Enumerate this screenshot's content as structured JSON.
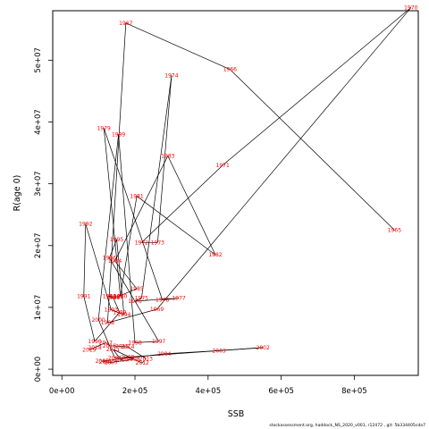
{
  "chart_data": {
    "type": "line",
    "title": "",
    "xlabel": "SSB",
    "ylabel": "R(age 0)",
    "xlim": [
      -25000,
      975000
    ],
    "ylim": [
      -1000000,
      58000000
    ],
    "xticks": [
      0,
      200000,
      400000,
      600000,
      800000
    ],
    "xtick_labels": [
      "0e+00",
      "2e+05",
      "4e+05",
      "6e+05",
      "8e+05"
    ],
    "yticks": [
      0,
      10000000,
      20000000,
      30000000,
      40000000,
      50000000
    ],
    "ytick_labels": [
      "0e+00",
      "1e+07",
      "2e+07",
      "3e+07",
      "4e+07",
      "5e+07"
    ],
    "grid": false,
    "line_color": "#000000",
    "label_color": "#ff0000",
    "footer": "stockassessment.org, haddock_NS_2020_v001, r12472 , git: 5b334405cda7",
    "points": [
      {
        "year": "1965",
        "x": 910000,
        "y": 22500000
      },
      {
        "year": "1966",
        "x": 460000,
        "y": 48500000
      },
      {
        "year": "1967",
        "x": 175000,
        "y": 56000000
      },
      {
        "year": "1968",
        "x": 125000,
        "y": 7500000
      },
      {
        "year": "1969",
        "x": 260000,
        "y": 9700000
      },
      {
        "year": "1970",
        "x": 955000,
        "y": 58500000
      },
      {
        "year": "1971",
        "x": 440000,
        "y": 33000000
      },
      {
        "year": "1972",
        "x": 218000,
        "y": 20500000
      },
      {
        "year": "1973",
        "x": 262000,
        "y": 20500000
      },
      {
        "year": "1974",
        "x": 300000,
        "y": 47500000
      },
      {
        "year": "1975",
        "x": 218000,
        "y": 11500000
      },
      {
        "year": "1976",
        "x": 200000,
        "y": 11000000
      },
      {
        "year": "1977",
        "x": 320000,
        "y": 11500000
      },
      {
        "year": "1978",
        "x": 275000,
        "y": 11200000
      },
      {
        "year": "1979",
        "x": 115000,
        "y": 39000000
      },
      {
        "year": "1980",
        "x": 160000,
        "y": 11800000
      },
      {
        "year": "1981",
        "x": 205000,
        "y": 28000000
      },
      {
        "year": "1982",
        "x": 420000,
        "y": 18500000
      },
      {
        "year": "1983",
        "x": 290000,
        "y": 34500000
      },
      {
        "year": "1984",
        "x": 145000,
        "y": 17500000
      },
      {
        "year": "1985",
        "x": 205000,
        "y": 13000000
      },
      {
        "year": "1986",
        "x": 150000,
        "y": 11700000
      },
      {
        "year": "1987",
        "x": 130000,
        "y": 11800000
      },
      {
        "year": "1988",
        "x": 140000,
        "y": 11600000
      },
      {
        "year": "1989",
        "x": 158000,
        "y": 9200000
      },
      {
        "year": "1990",
        "x": 90000,
        "y": 4500000
      },
      {
        "year": "1991",
        "x": 60000,
        "y": 11800000
      },
      {
        "year": "1992",
        "x": 65000,
        "y": 23500000
      },
      {
        "year": "1993",
        "x": 135000,
        "y": 9600000
      },
      {
        "year": "1994",
        "x": 170000,
        "y": 8800000
      },
      {
        "year": "1995",
        "x": 150000,
        "y": 21000000
      },
      {
        "year": "1996",
        "x": 130000,
        "y": 18000000
      },
      {
        "year": "1997",
        "x": 265000,
        "y": 4500000
      },
      {
        "year": "1998",
        "x": 200000,
        "y": 4300000
      },
      {
        "year": "1999",
        "x": 155000,
        "y": 38000000
      },
      {
        "year": "2000",
        "x": 100000,
        "y": 8000000
      },
      {
        "year": "2001",
        "x": 145000,
        "y": 1800000
      },
      {
        "year": "2002",
        "x": 550000,
        "y": 3500000
      },
      {
        "year": "2003",
        "x": 430000,
        "y": 3000000
      },
      {
        "year": "2004",
        "x": 280000,
        "y": 2500000
      },
      {
        "year": "2005",
        "x": 110000,
        "y": 1300000
      },
      {
        "year": "2006",
        "x": 120000,
        "y": 1200000
      },
      {
        "year": "2007",
        "x": 135000,
        "y": 1100000
      },
      {
        "year": "2008",
        "x": 195000,
        "y": 1600000
      },
      {
        "year": "2009",
        "x": 180000,
        "y": 2000000
      },
      {
        "year": "2010",
        "x": 162000,
        "y": 1500000
      },
      {
        "year": "2011",
        "x": 140000,
        "y": 3200000
      },
      {
        "year": "2012",
        "x": 220000,
        "y": 1000000
      },
      {
        "year": "2013",
        "x": 230000,
        "y": 1700000
      },
      {
        "year": "2014",
        "x": 180000,
        "y": 3600000
      },
      {
        "year": "2015",
        "x": 165000,
        "y": 3700000
      },
      {
        "year": "2016",
        "x": 130000,
        "y": 3800000
      },
      {
        "year": "2017",
        "x": 120000,
        "y": 4300000
      },
      {
        "year": "2018",
        "x": 90000,
        "y": 3500000
      },
      {
        "year": "2019",
        "x": 75000,
        "y": 3100000
      }
    ]
  }
}
